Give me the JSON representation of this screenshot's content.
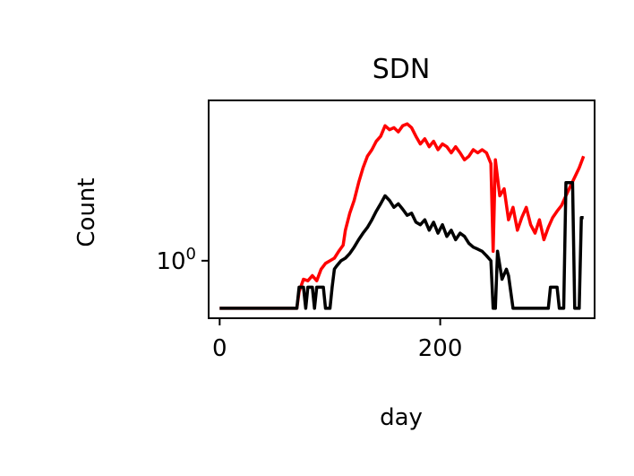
{
  "chart_data": {
    "type": "line",
    "title": "SDN",
    "xlabel": "day",
    "ylabel": "Count",
    "xscale": "linear",
    "yscale": "log",
    "xlim": [
      -10,
      340
    ],
    "ylim": [
      0.33,
      22
    ],
    "xticks": [
      {
        "value": 0,
        "label": "0"
      },
      {
        "value": 200,
        "label": "200"
      }
    ],
    "yticks": [
      {
        "value": 1,
        "label": "10",
        "exp": "0"
      }
    ],
    "grid": false,
    "legend": "none",
    "series": [
      {
        "color": "#ff0000",
        "points": [
          [
            0,
            0.4
          ],
          [
            30,
            0.4
          ],
          [
            60,
            0.4
          ],
          [
            70,
            0.4
          ],
          [
            72,
            0.55
          ],
          [
            76,
            0.7
          ],
          [
            80,
            0.68
          ],
          [
            84,
            0.75
          ],
          [
            88,
            0.68
          ],
          [
            92,
            0.85
          ],
          [
            96,
            0.95
          ],
          [
            100,
            1.0
          ],
          [
            104,
            1.05
          ],
          [
            108,
            1.2
          ],
          [
            112,
            1.35
          ],
          [
            114,
            1.8
          ],
          [
            118,
            2.5
          ],
          [
            122,
            3.2
          ],
          [
            126,
            4.5
          ],
          [
            130,
            6.0
          ],
          [
            134,
            7.5
          ],
          [
            138,
            8.5
          ],
          [
            142,
            10.0
          ],
          [
            146,
            11.0
          ],
          [
            150,
            13.5
          ],
          [
            154,
            12.5
          ],
          [
            158,
            13.0
          ],
          [
            162,
            12.0
          ],
          [
            166,
            13.5
          ],
          [
            170,
            14.0
          ],
          [
            174,
            13.0
          ],
          [
            178,
            11.0
          ],
          [
            182,
            9.5
          ],
          [
            186,
            10.5
          ],
          [
            190,
            9.0
          ],
          [
            194,
            10.0
          ],
          [
            198,
            8.5
          ],
          [
            202,
            9.5
          ],
          [
            206,
            9.0
          ],
          [
            210,
            8.0
          ],
          [
            214,
            9.0
          ],
          [
            218,
            8.0
          ],
          [
            222,
            7.0
          ],
          [
            226,
            7.5
          ],
          [
            230,
            8.5
          ],
          [
            234,
            8.0
          ],
          [
            238,
            8.5
          ],
          [
            242,
            8.0
          ],
          [
            246,
            6.5
          ],
          [
            248,
            1.2
          ],
          [
            250,
            7.0
          ],
          [
            254,
            3.5
          ],
          [
            258,
            4.0
          ],
          [
            262,
            2.2
          ],
          [
            266,
            2.8
          ],
          [
            270,
            1.8
          ],
          [
            274,
            2.3
          ],
          [
            278,
            2.8
          ],
          [
            282,
            2.0
          ],
          [
            286,
            1.7
          ],
          [
            290,
            2.2
          ],
          [
            294,
            1.5
          ],
          [
            298,
            1.9
          ],
          [
            302,
            2.3
          ],
          [
            306,
            2.6
          ],
          [
            310,
            2.9
          ],
          [
            314,
            3.5
          ],
          [
            318,
            4.2
          ],
          [
            322,
            5.0
          ],
          [
            326,
            6.0
          ],
          [
            330,
            7.5
          ]
        ]
      },
      {
        "color": "#000000",
        "points": [
          [
            0,
            0.4
          ],
          [
            30,
            0.4
          ],
          [
            60,
            0.4
          ],
          [
            70,
            0.4
          ],
          [
            72,
            0.6
          ],
          [
            76,
            0.6
          ],
          [
            78,
            0.4
          ],
          [
            80,
            0.6
          ],
          [
            84,
            0.6
          ],
          [
            86,
            0.4
          ],
          [
            88,
            0.6
          ],
          [
            94,
            0.6
          ],
          [
            96,
            0.4
          ],
          [
            100,
            0.4
          ],
          [
            102,
            0.6
          ],
          [
            104,
            0.85
          ],
          [
            106,
            0.9
          ],
          [
            110,
            1.0
          ],
          [
            114,
            1.05
          ],
          [
            118,
            1.15
          ],
          [
            122,
            1.3
          ],
          [
            126,
            1.5
          ],
          [
            130,
            1.7
          ],
          [
            134,
            1.9
          ],
          [
            138,
            2.2
          ],
          [
            142,
            2.6
          ],
          [
            146,
            3.0
          ],
          [
            150,
            3.5
          ],
          [
            154,
            3.2
          ],
          [
            158,
            2.8
          ],
          [
            162,
            3.0
          ],
          [
            166,
            2.7
          ],
          [
            170,
            2.4
          ],
          [
            174,
            2.5
          ],
          [
            178,
            2.1
          ],
          [
            182,
            2.0
          ],
          [
            186,
            2.2
          ],
          [
            190,
            1.8
          ],
          [
            194,
            2.1
          ],
          [
            198,
            1.7
          ],
          [
            202,
            2.0
          ],
          [
            206,
            1.6
          ],
          [
            210,
            1.8
          ],
          [
            214,
            1.5
          ],
          [
            218,
            1.7
          ],
          [
            222,
            1.6
          ],
          [
            226,
            1.4
          ],
          [
            230,
            1.3
          ],
          [
            234,
            1.25
          ],
          [
            238,
            1.2
          ],
          [
            242,
            1.1
          ],
          [
            246,
            1.0
          ],
          [
            248,
            0.4
          ],
          [
            250,
            0.4
          ],
          [
            252,
            1.2
          ],
          [
            256,
            0.7
          ],
          [
            260,
            0.85
          ],
          [
            262,
            0.75
          ],
          [
            266,
            0.4
          ],
          [
            280,
            0.4
          ],
          [
            290,
            0.4
          ],
          [
            298,
            0.4
          ],
          [
            300,
            0.6
          ],
          [
            306,
            0.6
          ],
          [
            308,
            0.4
          ],
          [
            312,
            0.4
          ],
          [
            314,
            4.5
          ],
          [
            320,
            4.5
          ],
          [
            322,
            0.4
          ],
          [
            326,
            0.4
          ],
          [
            328,
            2.3
          ],
          [
            330,
            2.3
          ]
        ]
      }
    ]
  }
}
